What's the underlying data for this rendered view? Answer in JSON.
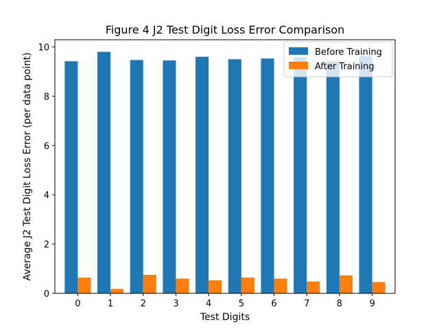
{
  "chart_data": {
    "type": "bar",
    "title": "Figure 4 J2 Test Digit Loss Error Comparison",
    "xlabel": "Test Digits",
    "ylabel": "Average J2 Test Digit Loss Error (per data point)",
    "categories": [
      "0",
      "1",
      "2",
      "3",
      "4",
      "5",
      "6",
      "7",
      "8",
      "9"
    ],
    "series": [
      {
        "name": "Before Training",
        "color": "#1f77b4",
        "values": [
          9.42,
          9.8,
          9.47,
          9.45,
          9.6,
          9.5,
          9.53,
          9.58,
          9.42,
          9.62
        ]
      },
      {
        "name": "After Training",
        "color": "#ff7f0e",
        "values": [
          0.64,
          0.18,
          0.75,
          0.6,
          0.53,
          0.64,
          0.6,
          0.48,
          0.73,
          0.46
        ]
      }
    ],
    "ylim": [
      0,
      10.29
    ],
    "yticks": [
      "0",
      "2",
      "4",
      "6",
      "8",
      "10"
    ],
    "grid": false,
    "legend": "top-right"
  }
}
